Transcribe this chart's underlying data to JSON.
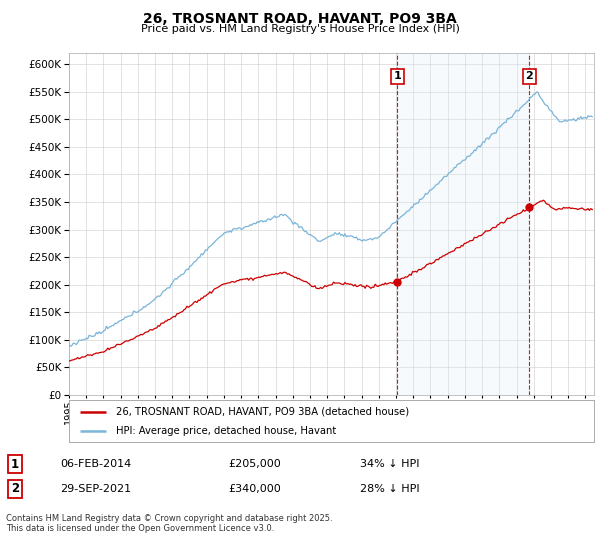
{
  "title": "26, TROSNANT ROAD, HAVANT, PO9 3BA",
  "subtitle": "Price paid vs. HM Land Registry's House Price Index (HPI)",
  "ylim": [
    0,
    620000
  ],
  "yticks": [
    0,
    50000,
    100000,
    150000,
    200000,
    250000,
    300000,
    350000,
    400000,
    450000,
    500000,
    550000,
    600000
  ],
  "xlim_start": 1995.0,
  "xlim_end": 2025.5,
  "hpi_color": "#7ab5d8",
  "hpi_fill_color": "#ddeef7",
  "price_color": "#cc0000",
  "vline_color": "#cc0000",
  "marker1_x": 2014.08,
  "marker2_x": 2021.75,
  "marker1_price": 205000,
  "marker2_price": 340000,
  "annotation1_label": "1",
  "annotation2_label": "2",
  "legend_line1": "26, TROSNANT ROAD, HAVANT, PO9 3BA (detached house)",
  "legend_line2": "HPI: Average price, detached house, Havant",
  "table_row1": [
    "1",
    "06-FEB-2014",
    "£205,000",
    "34% ↓ HPI"
  ],
  "table_row2": [
    "2",
    "29-SEP-2021",
    "£340,000",
    "28% ↓ HPI"
  ],
  "footnote": "Contains HM Land Registry data © Crown copyright and database right 2025.\nThis data is licensed under the Open Government Licence v3.0.",
  "background_color": "#ffffff",
  "grid_color": "#cccccc"
}
